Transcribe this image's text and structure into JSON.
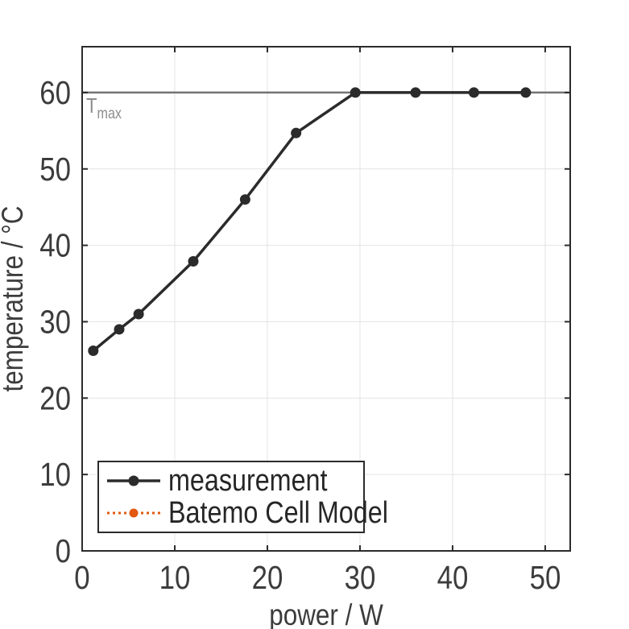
{
  "figure": {
    "background": "#ffffff",
    "kind": "exported line plot (MATLAB-style)"
  },
  "colors": {
    "axis": "#2b2b2b",
    "grid": "#e4e4e4",
    "tick_label": "#3c3c3c",
    "axis_label": "#3c3c3c",
    "measurement": "#2b2b2b",
    "model_orange": "#e2580f",
    "tmax_line": "#737373",
    "tmax_label": "#8c8c8c",
    "legend_text": "#262626"
  },
  "chart_data": {
    "type": "line",
    "title": "",
    "xlabel": "power / W",
    "ylabel": "temperature / °C",
    "x_ticks": [
      0,
      10,
      20,
      30,
      40,
      50
    ],
    "y_ticks": [
      0,
      10,
      20,
      30,
      40,
      50,
      60
    ],
    "xlim": [
      0,
      52.7
    ],
    "ylim": [
      0,
      66
    ],
    "grid": true,
    "legend_position": "lower-left",
    "series": [
      {
        "name": "Batemo Cell Model",
        "color": "#e2580f",
        "line_style": "dotted",
        "line_width": 3,
        "marker": "filled-circle",
        "marker_radius": 5.5,
        "x": [
          1.2,
          4.0,
          6.1,
          12.0,
          17.6,
          23.1,
          29.5,
          36.0,
          42.3,
          47.9
        ],
        "y": [
          26.2,
          29.0,
          31.0,
          37.9,
          46.0,
          54.7,
          60.0,
          60.0,
          60.0,
          60.0
        ],
        "visibility": "coincides with measurement curve; hidden beneath it in the plot area (visible only in legend)"
      },
      {
        "name": "measurement",
        "color": "#2b2b2b",
        "line_style": "solid",
        "line_width": 3.5,
        "marker": "filled-circle",
        "marker_radius": 6.5,
        "x": [
          1.2,
          4.0,
          6.1,
          12.0,
          17.6,
          23.1,
          29.5,
          36.0,
          42.3,
          47.9
        ],
        "y": [
          26.2,
          29.0,
          31.0,
          37.9,
          46.0,
          54.7,
          60.0,
          60.0,
          60.0,
          60.0
        ]
      }
    ],
    "reference_line": {
      "y": 60,
      "label_base": "T",
      "label_sub": "max",
      "line_color": "#737373",
      "label_color": "#8c8c8c"
    },
    "legend_order": [
      "measurement",
      "Batemo Cell Model"
    ]
  }
}
